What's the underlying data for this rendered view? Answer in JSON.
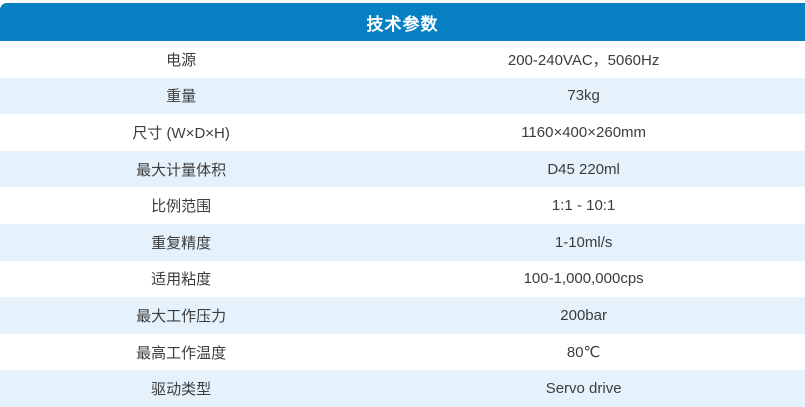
{
  "table": {
    "title": "技术参数",
    "rows": [
      {
        "label": "电源",
        "value": "200-240VAC，5060Hz"
      },
      {
        "label": "重量",
        "value": "73kg"
      },
      {
        "label": "尺寸 (W×D×H)",
        "value": "1160×400×260mm"
      },
      {
        "label": "最大计量体积",
        "value": "D45 220ml"
      },
      {
        "label": "比例范围",
        "value": "1:1 - 10:1"
      },
      {
        "label": "重复精度",
        "value": "1-10ml/s"
      },
      {
        "label": "适用粘度",
        "value": "100-1,000,000cps"
      },
      {
        "label": "最大工作压力",
        "value": "200bar"
      },
      {
        "label": "最高工作温度",
        "value": "80℃"
      },
      {
        "label": "驱动类型",
        "value": "Servo drive"
      }
    ],
    "colors": {
      "header_bg": "#0680c2",
      "header_text": "#ffffff",
      "row_bg": "#ffffff",
      "row_alt_bg": "#e5f2fc",
      "body_text": "#3c3c3c"
    }
  }
}
